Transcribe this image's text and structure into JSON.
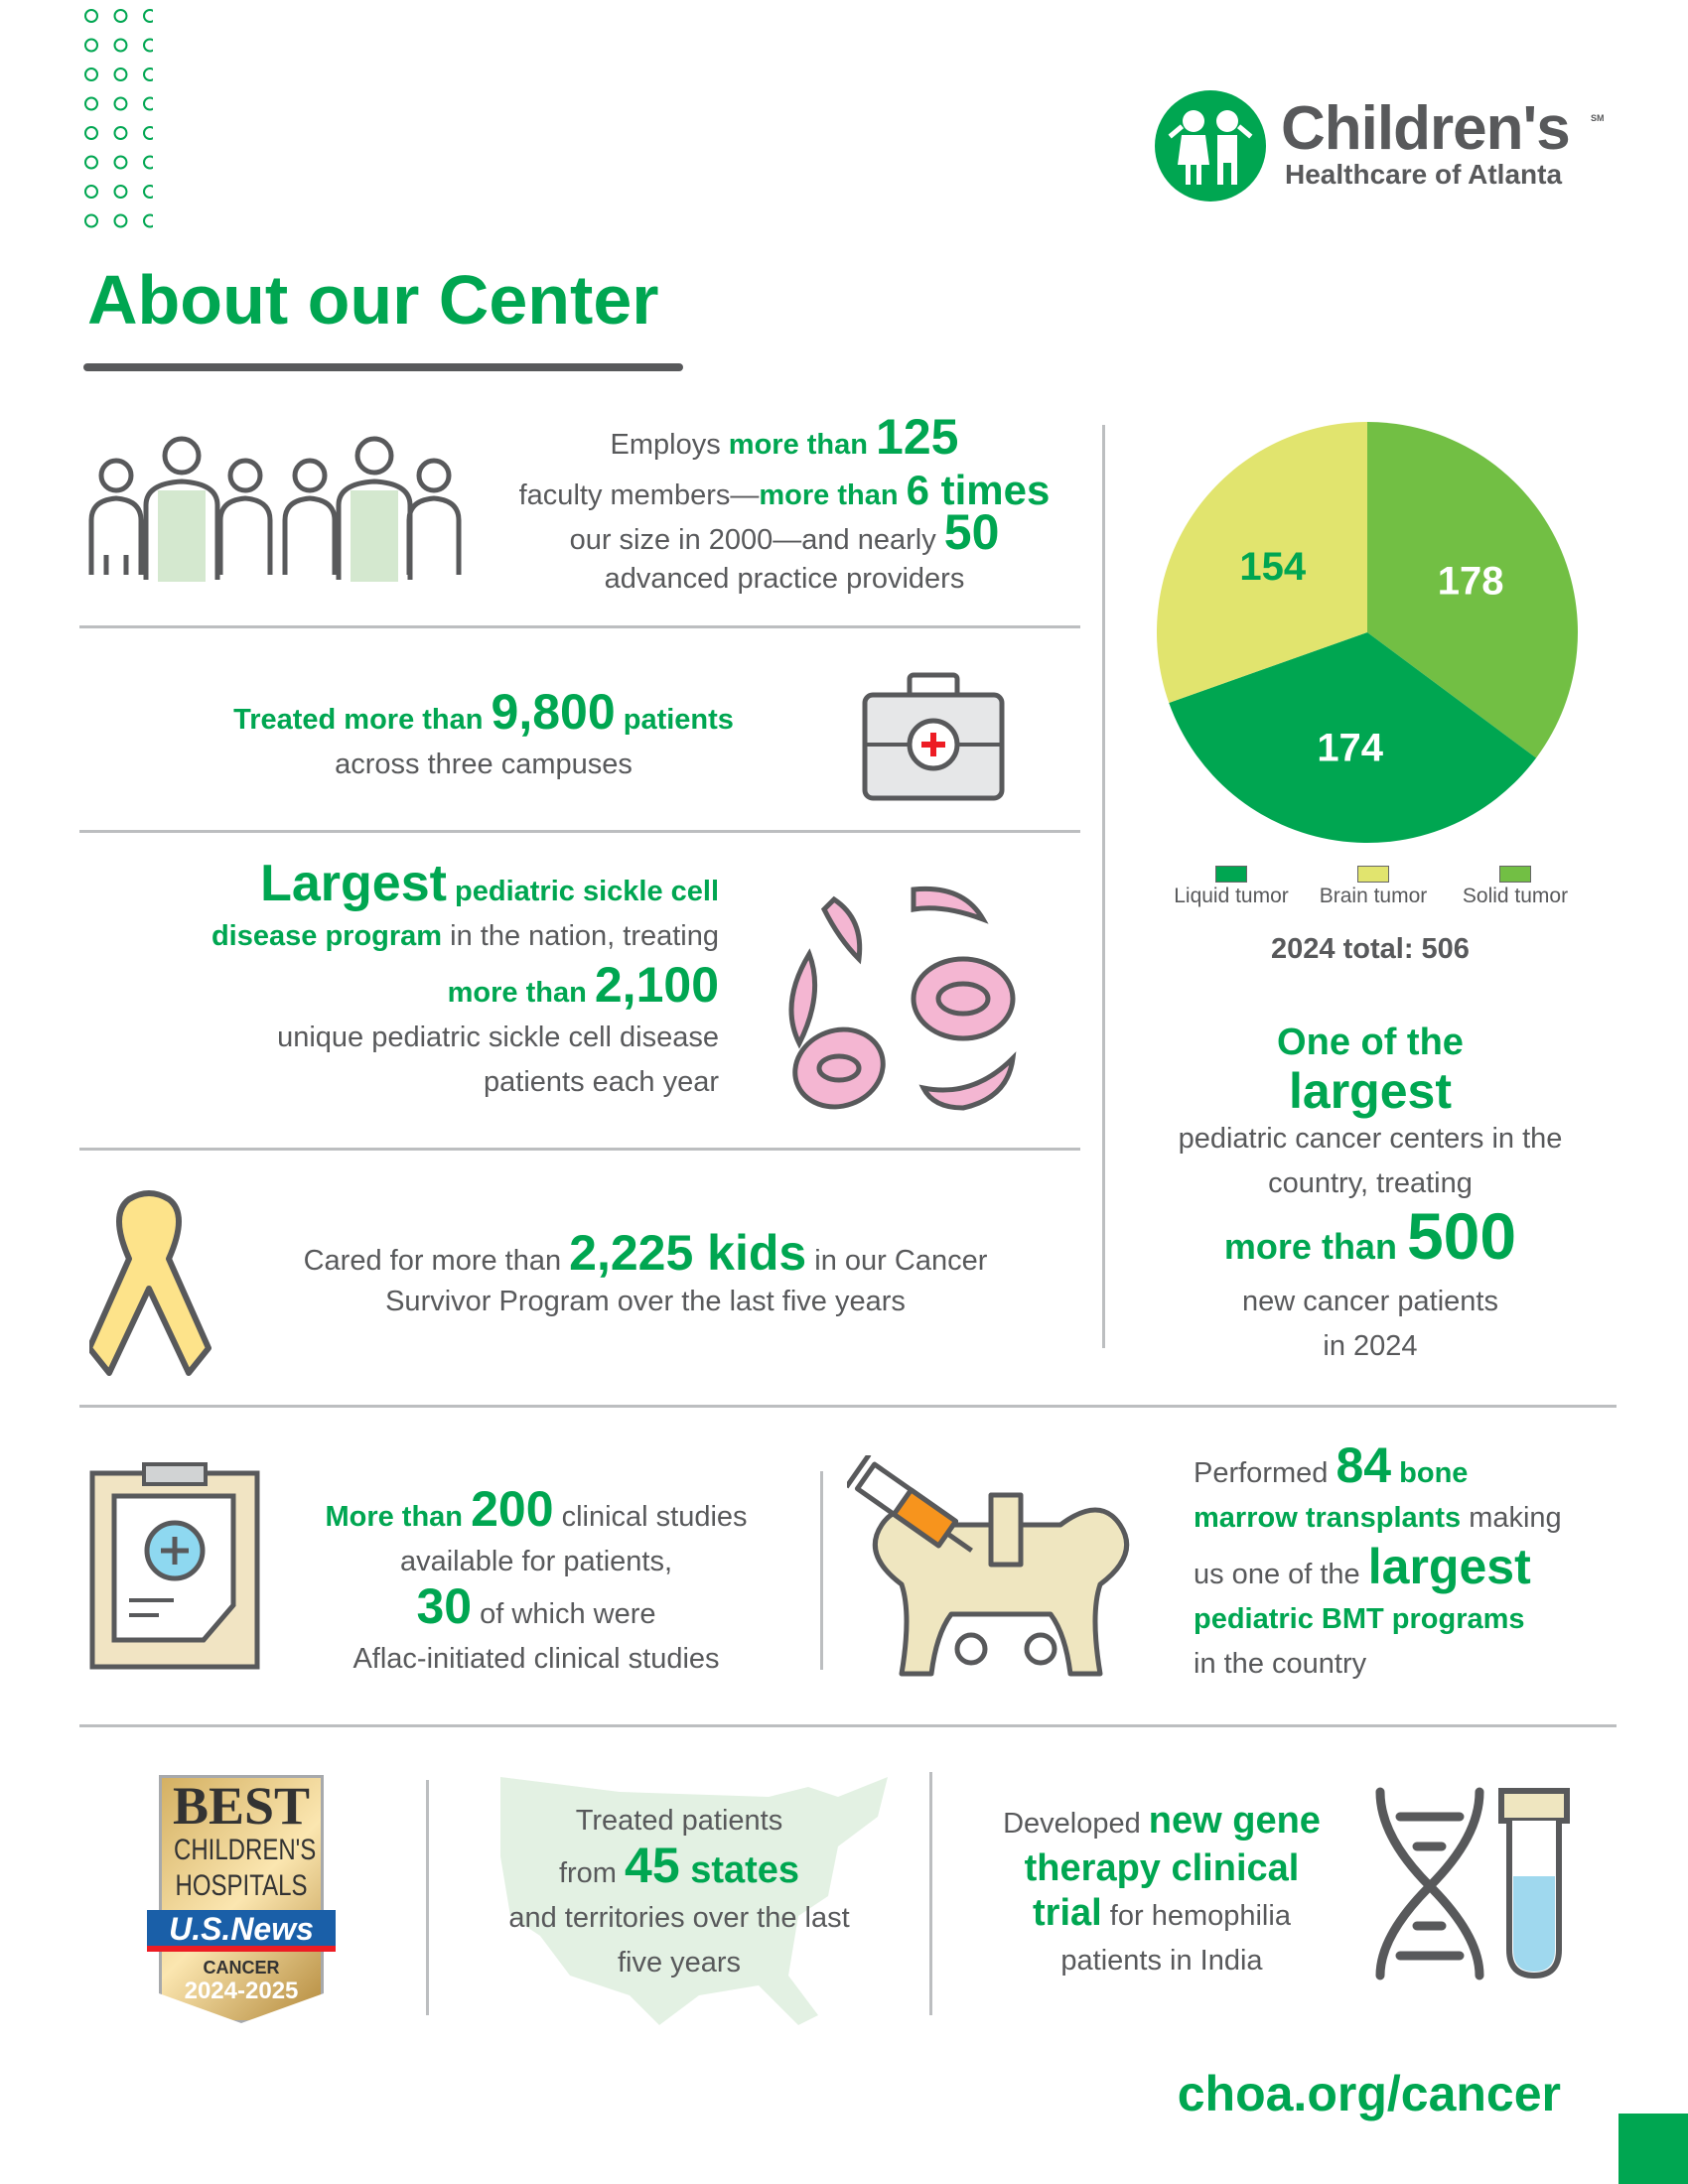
{
  "colors": {
    "green": "#00a651",
    "light_green": "#72bf44",
    "yellow": "#e1e46e",
    "text": "#58595b"
  },
  "logo": {
    "name": "Children's",
    "sub": "Healthcare of Atlanta",
    "mark": "SM"
  },
  "title": "About our Center",
  "faculty": {
    "a": "Employs ",
    "b": "more than ",
    "c": "125",
    "d": "faculty members—",
    "e": "more than ",
    "f": "6 times",
    "g": "our size in 2000—and nearly ",
    "h": "50",
    "i": "advanced practice providers"
  },
  "patients": {
    "a": "Treated more than ",
    "b": "9,800",
    "c": " patients",
    "d": "across three campuses"
  },
  "sickle": {
    "a": "Largest",
    "b": " pediatric sickle cell",
    "c": "disease program",
    "d": " in the nation, treating",
    "e": "more than ",
    "f": "2,100",
    "g": "unique pediatric sickle cell disease",
    "h": "patients each year"
  },
  "survivor": {
    "a": "Cared for more than ",
    "b": "2,225 kids",
    "c": " in our Cancer",
    "d": "Survivor Program over the last five years"
  },
  "chart_data": {
    "type": "pie",
    "slices": [
      {
        "label": "Solid tumor",
        "value": 178,
        "color": "#72bf44"
      },
      {
        "label": "Liquid tumor",
        "value": 174,
        "color": "#00a651"
      },
      {
        "label": "Brain tumor",
        "value": 154,
        "color": "#e1e46e"
      }
    ],
    "legend_order": [
      "Liquid tumor",
      "Brain tumor",
      "Solid tumor"
    ],
    "legend_placement": "bottom",
    "total_label": "2024 total: 506"
  },
  "largest": {
    "a": "One of the",
    "b": "largest",
    "c": "pediatric cancer centers in the",
    "d": "country, treating",
    "e": "more than ",
    "f": "500",
    "g": "new cancer patients",
    "h": "in 2024"
  },
  "studies": {
    "a": "More than ",
    "b": "200",
    "c": " clinical studies",
    "d": "available for patients,",
    "e": "30",
    "f": " of which were",
    "g": "Aflac-initiated clinical studies"
  },
  "bmt": {
    "a": "Performed ",
    "b": "84",
    "c": " bone",
    "d": "marrow transplants",
    "e": " making",
    "f": "us one of the ",
    "g": "largest",
    "h": "pediatric BMT programs",
    "i": "in the country"
  },
  "badge": {
    "l1": "BEST",
    "l2": "CHILDREN'S",
    "l3": "HOSPITALS",
    "l4": "U.S.News",
    "l5": "CANCER",
    "l6": "2024-2025"
  },
  "states": {
    "a": "Treated patients",
    "b": "from ",
    "c": "45",
    "d": " states",
    "e": "and territories over the last",
    "f": "five years"
  },
  "gene": {
    "a": "Developed ",
    "b": "new gene",
    "c": "therapy clinical",
    "d": "trial",
    "e": " for hemophilia",
    "f": "patients in India"
  },
  "url": "choa.org/cancer"
}
